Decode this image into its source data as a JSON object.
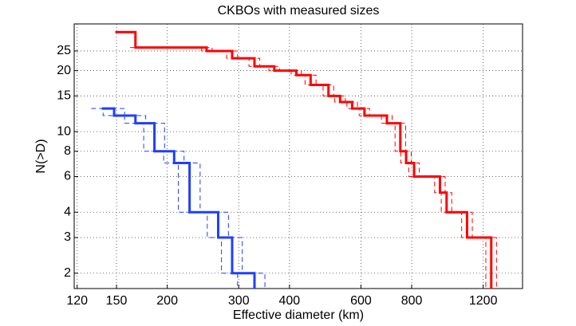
{
  "chart_data": {
    "type": "step",
    "title": "CKBOs with measured sizes",
    "xlabel": "Effective diameter (km)",
    "ylabel": "N(>D)",
    "xscale": "log",
    "yscale": "log",
    "grid": true,
    "xlim": [
      118,
      1500
    ],
    "ylim": [
      1.68,
      34
    ],
    "xticks": [
      120,
      150,
      200,
      300,
      400,
      600,
      800,
      1200
    ],
    "yticks": [
      2,
      3,
      4,
      6,
      8,
      10,
      15,
      20,
      25
    ],
    "series": [
      {
        "color": "#ff0000",
        "style": "solid",
        "x": [
          149,
          167,
          250,
          289,
          328,
          367,
          416,
          451,
          499,
          533,
          571,
          612,
          695,
          750,
          775,
          811,
          939,
          975,
          1095,
          1256
        ],
        "values": [
          31,
          26,
          25,
          23,
          21,
          20,
          19,
          17,
          15,
          14,
          13,
          12,
          11,
          8,
          7,
          6,
          5,
          4,
          3,
          2
        ]
      },
      {
        "color": "#ff0000",
        "style": "dashed",
        "x": [
          172,
          258,
          298,
          338,
          378,
          428,
          465,
          514,
          549,
          588,
          630,
          716,
          773,
          798,
          835,
          967,
          1004,
          1128,
          1294
        ],
        "values": [
          26,
          25,
          23,
          21,
          20,
          19,
          17,
          15,
          14,
          13,
          12,
          11,
          8,
          7,
          6,
          5,
          4,
          3,
          2
        ]
      },
      {
        "color": "#ff0000",
        "style": "dashed",
        "x": [
          162,
          243,
          280,
          318,
          356,
          404,
          437,
          484,
          517,
          554,
          594,
          674,
          728,
          752,
          787,
          911,
          946,
          1062,
          1218
        ],
        "values": [
          26,
          25,
          23,
          21,
          20,
          19,
          17,
          15,
          14,
          13,
          12,
          11,
          8,
          7,
          6,
          5,
          4,
          3,
          2
        ]
      },
      {
        "color": "#1f3fff",
        "style": "solid",
        "x": [
          138,
          148,
          167,
          186,
          208,
          227,
          267,
          289,
          328
        ],
        "values": [
          13,
          12,
          11,
          8,
          7,
          4,
          3,
          2,
          2
        ]
      },
      {
        "color": "#1f3fff",
        "style": "dashed",
        "x": [
          146,
          157,
          177,
          197,
          220,
          241,
          283,
          306,
          348
        ],
        "values": [
          13,
          12,
          11,
          8,
          7,
          4,
          3,
          2,
          2
        ]
      },
      {
        "color": "#1f3fff",
        "style": "dashed",
        "x": [
          130,
          139,
          157,
          175,
          196,
          213,
          251,
          272,
          298
        ],
        "values": [
          13,
          12,
          11,
          8,
          7,
          4,
          3,
          2,
          2
        ]
      }
    ]
  }
}
